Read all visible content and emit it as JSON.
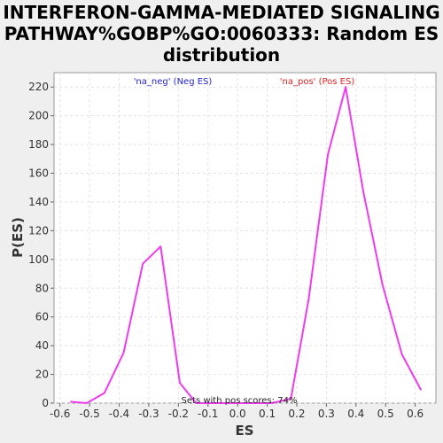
{
  "chart_data": {
    "type": "line",
    "title_lines": [
      "INTERFERON-GAMMA-MEDIATED SIGNALING",
      "PATHWAY%GOBP%GO:0060333: Random ES",
      "distribution"
    ],
    "xlabel": "ES",
    "ylabel": "P(ES)",
    "xlim": [
      -0.62,
      0.67
    ],
    "ylim": [
      0,
      230
    ],
    "xticks": [
      -0.6,
      -0.5,
      -0.4,
      -0.3,
      -0.2,
      -0.1,
      0.0,
      0.1,
      0.2,
      0.3,
      0.4,
      0.5,
      0.6
    ],
    "xtick_labels": [
      "-0.6",
      "-0.5",
      "-0.4",
      "-0.3",
      "-0.2",
      "-0.1",
      "0.0",
      "0.1",
      "0.2",
      "0.3",
      "0.4",
      "0.5",
      "0.6"
    ],
    "yticks": [
      0,
      20,
      40,
      60,
      80,
      100,
      120,
      140,
      160,
      180,
      200,
      220
    ],
    "ytick_labels": [
      "0",
      "20",
      "40",
      "60",
      "80",
      "100",
      "120",
      "140",
      "160",
      "180",
      "200",
      "220"
    ],
    "grid": true,
    "series": [
      {
        "color": "#ee3bee",
        "x": [
          -0.565,
          -0.51,
          -0.45,
          -0.385,
          -0.32,
          -0.26,
          -0.195,
          -0.14,
          -0.075,
          -0.01,
          0.05,
          0.115,
          0.18,
          0.24,
          0.305,
          0.365,
          0.425,
          0.49,
          0.555,
          0.62
        ],
        "y": [
          1,
          0,
          7,
          35,
          97,
          109,
          14,
          0,
          0,
          0,
          0,
          0,
          3,
          72,
          173,
          220,
          147,
          82,
          34,
          9
        ]
      }
    ],
    "annotations": {
      "neg": {
        "text": "'na_neg' (Neg ES)",
        "color": "#2222cc"
      },
      "pos": {
        "text": "'na_pos' (Pos ES)",
        "color": "#dd2222"
      },
      "bottom": {
        "text": "Sets with pos scores: 74%",
        "color": "#222222"
      }
    }
  }
}
